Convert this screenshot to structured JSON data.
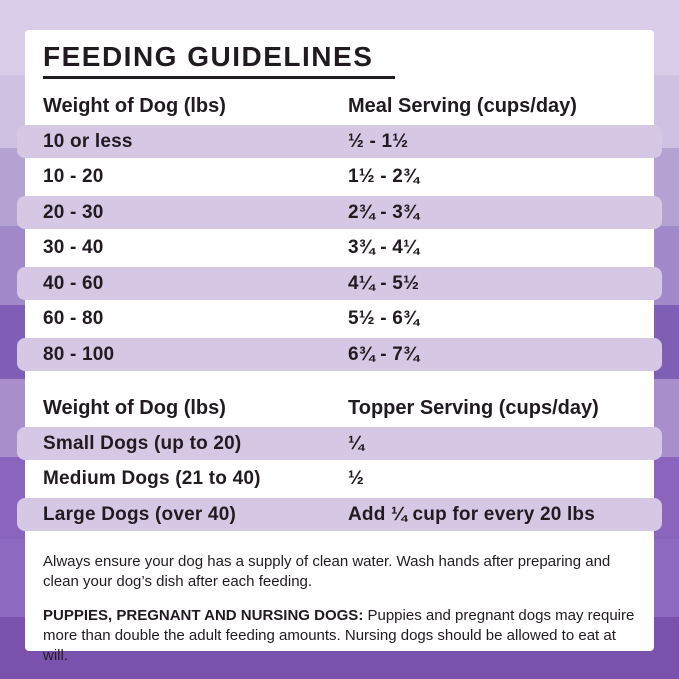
{
  "title": "FEEDING GUIDELINES",
  "meal_table": {
    "col1_header": "Weight of Dog (lbs)",
    "col2_header": "Meal Serving (cups/day)",
    "rows": [
      {
        "weight": "10 or less",
        "serving": "½ - 1½"
      },
      {
        "weight": "10 - 20",
        "serving": "1½ - 2¾"
      },
      {
        "weight": "20 - 30",
        "serving": "2¾ - 3¾"
      },
      {
        "weight": "30 - 40",
        "serving": "3¾ - 4¼"
      },
      {
        "weight": "40 - 60",
        "serving": "4¼ - 5½"
      },
      {
        "weight": "60 - 80",
        "serving": "5½ - 6¾"
      },
      {
        "weight": "80 - 100",
        "serving": "6¾ - 7¾"
      }
    ]
  },
  "topper_table": {
    "col1_header": "Weight of Dog (lbs)",
    "col2_header": "Topper Serving (cups/day)",
    "rows": [
      {
        "weight": "Small Dogs (up to 20)",
        "serving": "¼"
      },
      {
        "weight": "Medium Dogs (21 to 40)",
        "serving": "½"
      },
      {
        "weight": "Large Dogs (over 40)",
        "serving": "Add ¼ cup for every 20 lbs"
      }
    ]
  },
  "notes": {
    "water_note": "Always ensure your dog has a supply of clean water. Wash hands after preparing and clean your dog’s dish after each feeding.",
    "puppies_label": "PUPPIES, PREGNANT AND NURSING DOGS:",
    "puppies_note": "Puppies and pregnant dogs may require more than double the adult feeding amounts. Nursing dogs should be allowed to eat at will."
  },
  "colors": {
    "text": "#211b21",
    "card_background": "#ffffff",
    "row_highlight": "#d6c7e5",
    "background_bands": [
      {
        "color": "#d9cde9",
        "to": 75
      },
      {
        "color": "#cfc1e2",
        "to": 148
      },
      {
        "color": "#b4a2d3",
        "to": 226
      },
      {
        "color": "#a28aca",
        "to": 305
      },
      {
        "color": "#7f5eb6",
        "to": 379
      },
      {
        "color": "#a88fcc",
        "to": 457
      },
      {
        "color": "#8a64bd",
        "to": 539
      },
      {
        "color": "#8e69c0",
        "to": 617
      },
      {
        "color": "#7b51ae",
        "to": 679
      }
    ]
  }
}
